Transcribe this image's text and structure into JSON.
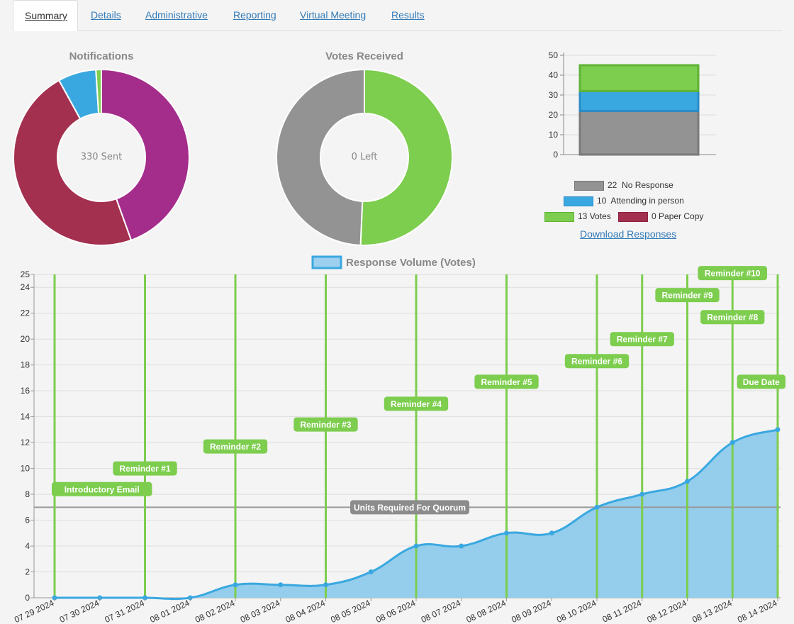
{
  "tabs": [
    {
      "label": "Summary",
      "active": true
    },
    {
      "label": "Details"
    },
    {
      "label": "Administrative"
    },
    {
      "label": "Reporting"
    },
    {
      "label": "Virtual Meeting"
    },
    {
      "label": "Results"
    }
  ],
  "notifications": {
    "title": "Notifications",
    "center": "330 Sent",
    "chart_data": {
      "type": "pie",
      "slices": [
        {
          "value": 44.5,
          "color": "#a42d8c"
        },
        {
          "value": 47.5,
          "color": "#a3304f"
        },
        {
          "value": 7,
          "color": "#3aa8e0"
        },
        {
          "value": 1,
          "color": "#7dcd4e"
        }
      ]
    }
  },
  "votes_received": {
    "title": "Votes Received",
    "center": "0 Left",
    "chart_data": {
      "type": "pie",
      "slices": [
        {
          "value": 50.7,
          "color": "#7dcd4e"
        },
        {
          "value": 49.3,
          "color": "#939393"
        }
      ]
    }
  },
  "stacked": {
    "chart_data": {
      "type": "bar",
      "ylim": [
        0,
        50
      ],
      "yticks": [
        "0",
        "10",
        "20",
        "30",
        "40",
        "50"
      ],
      "series": [
        {
          "value": 22,
          "color": "#939393",
          "border": "#7a7a7a"
        },
        {
          "value": 10,
          "color": "#3aa8e0",
          "border": "#2a8bc8"
        },
        {
          "value": 13,
          "color": "#7dcd4e",
          "border": "#5fb336"
        }
      ]
    },
    "legend": [
      {
        "count": "22",
        "label": "No Response",
        "color": "#939393",
        "border": "#7a7a7a"
      },
      {
        "count": "10",
        "label": "Attending in person",
        "color": "#3aa8e0",
        "border": "#2a8bc8"
      },
      {
        "count": "13",
        "label": "Votes",
        "color": "#7dcd4e",
        "border": "#5fb336"
      },
      {
        "count": "0",
        "label": "Paper Copy",
        "color": "#a3304f",
        "border": "#8a2440"
      }
    ],
    "download": "Download Responses"
  },
  "volume": {
    "chart_data": {
      "type": "area",
      "title": "Response Volume (Votes)",
      "ylim": [
        0,
        25
      ],
      "yticks": [
        "0",
        "2",
        "4",
        "6",
        "8",
        "10",
        "12",
        "14",
        "16",
        "18",
        "20",
        "22",
        "24",
        "25"
      ],
      "x": [
        "07 29 2024",
        "07 30 2024",
        "07 31 2024",
        "08 01 2024",
        "08 02 2024",
        "08 03 2024",
        "08 04 2024",
        "08 05 2024",
        "08 06 2024",
        "08 07 2024",
        "08 08 2024",
        "08 09 2024",
        "08 10 2024",
        "08 11 2024",
        "08 12 2024",
        "08 13 2024",
        "08 14 2024"
      ],
      "values": [
        0,
        0,
        0,
        0,
        1,
        1,
        1,
        2,
        4,
        4,
        5,
        5,
        7,
        8,
        9,
        12,
        13
      ],
      "quorum": {
        "value": 7,
        "label": "Units Required For Quorum"
      },
      "events": [
        {
          "label": "Introductory Email",
          "x": 0,
          "y": 8.4
        },
        {
          "label": "Reminder #1",
          "x": 2,
          "y": 10
        },
        {
          "label": "Reminder #2",
          "x": 4,
          "y": 11.7
        },
        {
          "label": "Reminder #3",
          "x": 6,
          "y": 13.4
        },
        {
          "label": "Reminder #4",
          "x": 8,
          "y": 15
        },
        {
          "label": "Reminder #5",
          "x": 10,
          "y": 16.7
        },
        {
          "label": "Reminder #6",
          "x": 12,
          "y": 18.3
        },
        {
          "label": "Reminder #7",
          "x": 13,
          "y": 20
        },
        {
          "label": "Reminder #8",
          "x": 15,
          "y": 21.7
        },
        {
          "label": "Reminder #9",
          "x": 14,
          "y": 23.4
        },
        {
          "label": "Reminder #10",
          "x": 15,
          "y": 25.1
        },
        {
          "label": "Due Date",
          "x": 16,
          "y": 16.7
        }
      ]
    }
  }
}
